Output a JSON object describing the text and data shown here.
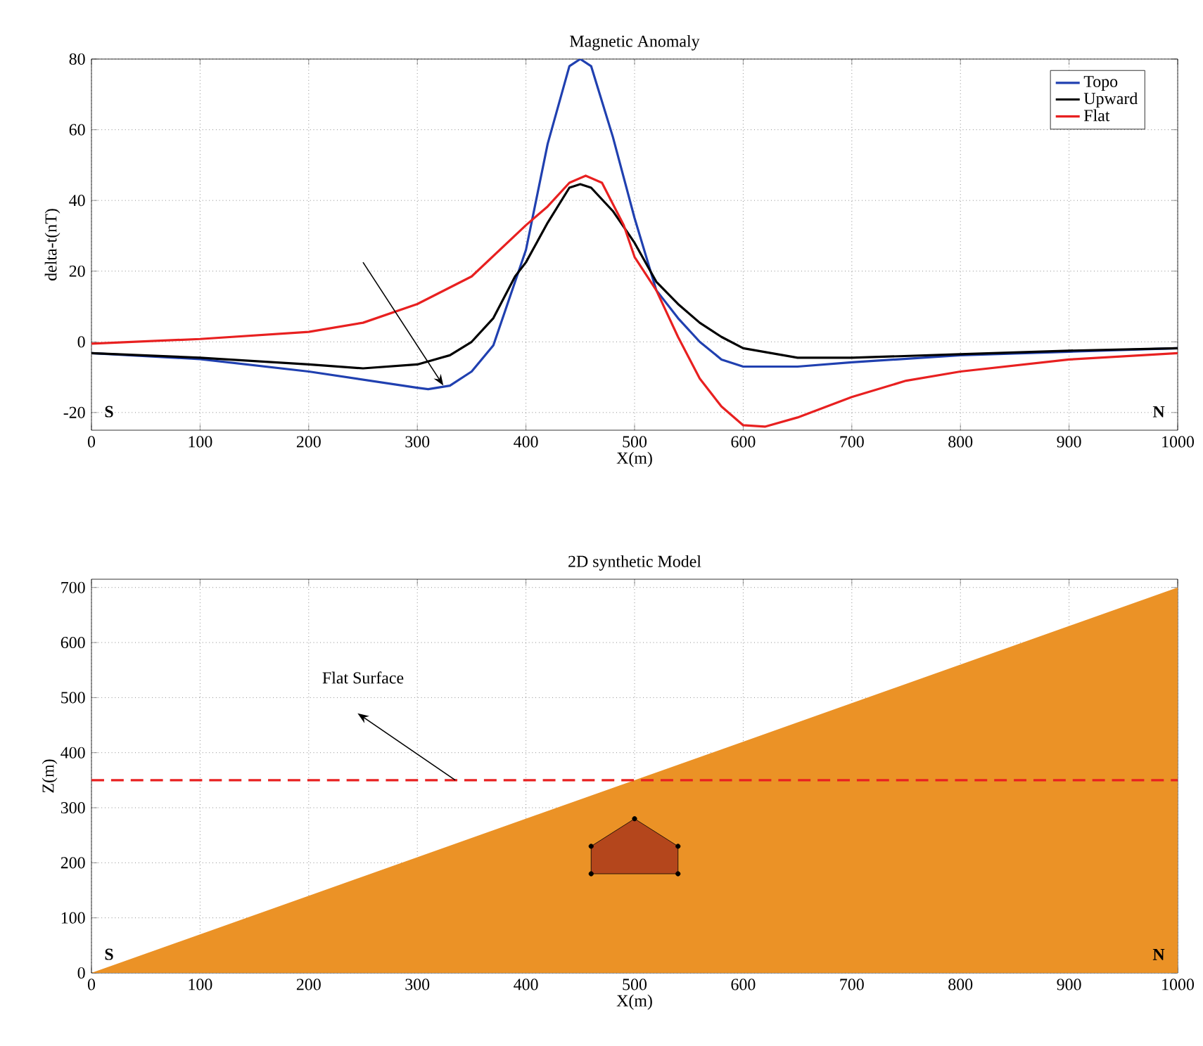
{
  "chart_data": [
    {
      "type": "line",
      "title": "Magnetic Anomaly",
      "xlabel": "X(m)",
      "ylabel": "delta-t(nT)",
      "series": [
        {
          "name": "Topo",
          "color": "#2040b0",
          "x": [
            0,
            100,
            200,
            300,
            310,
            330,
            350,
            370,
            390,
            400,
            420,
            440,
            450,
            460,
            480,
            500,
            520,
            540,
            560,
            580,
            600,
            650,
            700,
            800,
            900,
            1000
          ],
          "values": [
            -3.2,
            -4.9,
            -8.4,
            -13,
            -13.4,
            -12.4,
            -8.4,
            -1,
            17,
            26,
            56,
            78,
            80,
            78,
            58,
            35,
            14.6,
            6.7,
            0,
            -5,
            -7,
            -7,
            -5.8,
            -3.8,
            -2.8,
            -1.8
          ]
        },
        {
          "name": "Upward",
          "color": "#000000",
          "x": [
            0,
            100,
            200,
            250,
            300,
            330,
            350,
            370,
            390,
            400,
            420,
            440,
            450,
            460,
            480,
            500,
            520,
            540,
            560,
            580,
            600,
            650,
            700,
            800,
            900,
            1000
          ],
          "values": [
            -3.2,
            -4.5,
            -6.4,
            -7.5,
            -6.4,
            -3.8,
            0,
            6.7,
            18.5,
            22.5,
            33.7,
            43.6,
            44.6,
            43.6,
            37,
            28,
            17,
            10.7,
            5.4,
            1.4,
            -1.8,
            -4.5,
            -4.5,
            -3.5,
            -2.5,
            -1.8
          ]
        },
        {
          "name": "Flat",
          "color": "#e82020",
          "x": [
            0,
            100,
            200,
            250,
            300,
            350,
            400,
            420,
            440,
            455,
            470,
            490,
            500,
            520,
            540,
            560,
            580,
            600,
            620,
            650,
            700,
            750,
            800,
            900,
            1000
          ],
          "values": [
            -0.5,
            0.8,
            2.8,
            5.4,
            10.7,
            18.5,
            33,
            38.3,
            45,
            47,
            45,
            33,
            24,
            14.6,
            1.4,
            -10.4,
            -18.3,
            -23.6,
            -24,
            -21.4,
            -15.6,
            -11,
            -8.4,
            -5,
            -3.2
          ]
        }
      ],
      "xlim": [
        0,
        1000
      ],
      "ylim": [
        -25,
        80
      ],
      "xticks": [
        0,
        100,
        200,
        300,
        400,
        500,
        600,
        700,
        800,
        900,
        1000
      ],
      "yticks": [
        -20,
        0,
        20,
        40,
        60,
        80
      ],
      "annotations": [
        "S",
        "N"
      ],
      "grid": true,
      "legend": "top right"
    },
    {
      "type": "area",
      "title": "2D synthetic Model",
      "xlabel": "X(m)",
      "ylabel": "Z(m)",
      "series": [
        {
          "color": "#eb9226",
          "x": [
            0,
            1000
          ],
          "values": [
            0,
            700
          ]
        },
        {
          "type": "area",
          "color": "#b4461c",
          "x": [
            460,
            460,
            500,
            540,
            540
          ],
          "values": [
            180,
            230,
            280,
            230,
            180
          ],
          "marker": "circle"
        }
      ],
      "xlim": [
        0,
        1000
      ],
      "ylim": [
        0,
        715
      ],
      "xticks": [
        0,
        100,
        200,
        300,
        400,
        500,
        600,
        700,
        800,
        900,
        1000
      ],
      "yticks": [
        0,
        100,
        200,
        300,
        400,
        500,
        600,
        700
      ],
      "ref_lines": [
        {
          "axis": "y",
          "value": 350,
          "color": "#e82020",
          "line_style": "dashed"
        }
      ],
      "annotations": [
        "Flat Surface",
        "S",
        "N"
      ],
      "grid": true
    }
  ]
}
